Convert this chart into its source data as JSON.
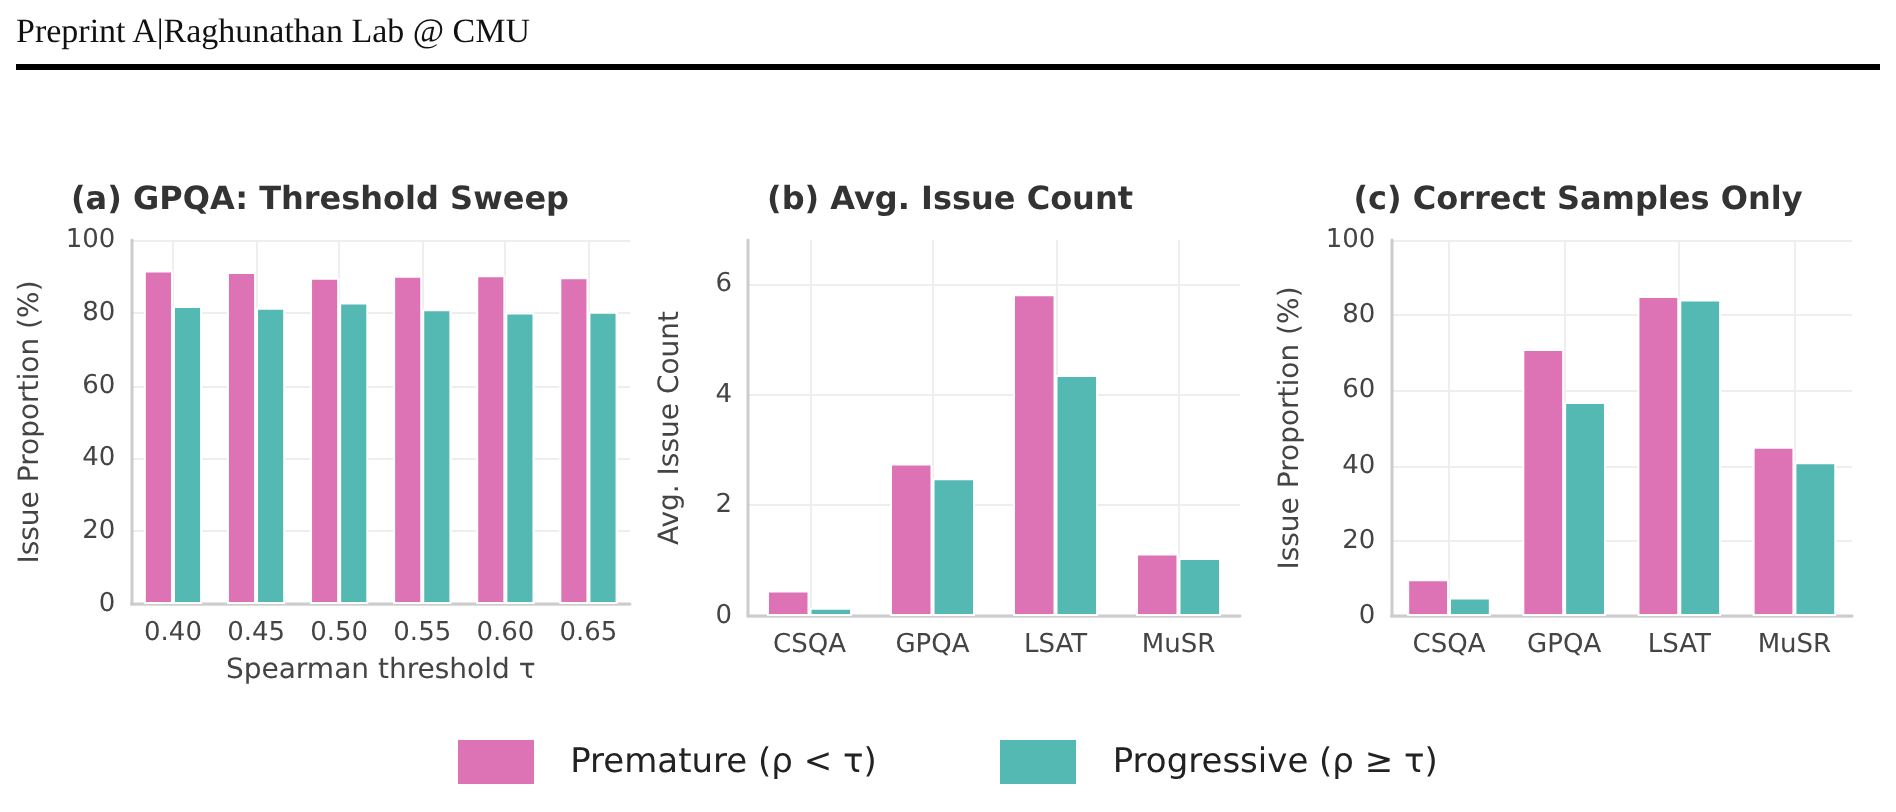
{
  "chart_data": [
    {
      "type": "bar",
      "title": "(a) GPQA: Threshold Sweep",
      "xlabel": "Spearman threshold τ",
      "ylabel": "Issue Proportion (%)",
      "annotations": [
        "Preprint A|Raghunathan Lab @ CMU"
      ],
      "categories": [
        "0.40",
        "0.45",
        "0.50",
        "0.55",
        "0.60",
        "0.65"
      ],
      "series": [
        {
          "name": "Premature (ρ < τ)",
          "color": "#dd72b4",
          "values": [
            91.6,
            91.2,
            89.6,
            90.2,
            90.3,
            89.8
          ]
        },
        {
          "name": "Progressive (ρ ≥ τ)",
          "color": "#54b8b3",
          "values": [
            81.9,
            81.4,
            82.8,
            81.0,
            80.1,
            80.3
          ]
        }
      ],
      "ylim": [
        0,
        100
      ],
      "yticks": [
        0,
        20,
        40,
        60,
        80,
        100
      ],
      "grid": true,
      "legend": "bottom"
    },
    {
      "type": "bar",
      "title": "(b) Avg. Issue Count",
      "ylabel": "Avg. Issue Count",
      "categories": [
        "CSQA",
        "GPQA",
        "LSAT",
        "MuSR"
      ],
      "series": [
        {
          "color": "#dd72b4",
          "values": [
            0.46,
            2.76,
            5.82,
            1.13
          ]
        },
        {
          "color": "#54b8b3",
          "values": [
            0.15,
            2.49,
            4.36,
            1.05
          ]
        }
      ],
      "ylim": [
        0,
        6.8
      ],
      "yticks": [
        0,
        2,
        4,
        6
      ],
      "grid": true
    },
    {
      "type": "bar",
      "title": "(c) Correct Samples Only",
      "ylabel": "Issue Proportion (%)",
      "categories": [
        "CSQA",
        "GPQA",
        "LSAT",
        "MuSR"
      ],
      "series": [
        {
          "color": "#dd72b4",
          "values": [
            9.8,
            71.0,
            85.1,
            45.0
          ]
        },
        {
          "color": "#54b8b3",
          "values": [
            4.9,
            56.9,
            84.2,
            40.9
          ]
        }
      ],
      "ylim": [
        0,
        100
      ],
      "yticks": [
        0,
        20,
        40,
        60,
        80,
        100
      ],
      "grid": true
    }
  ]
}
